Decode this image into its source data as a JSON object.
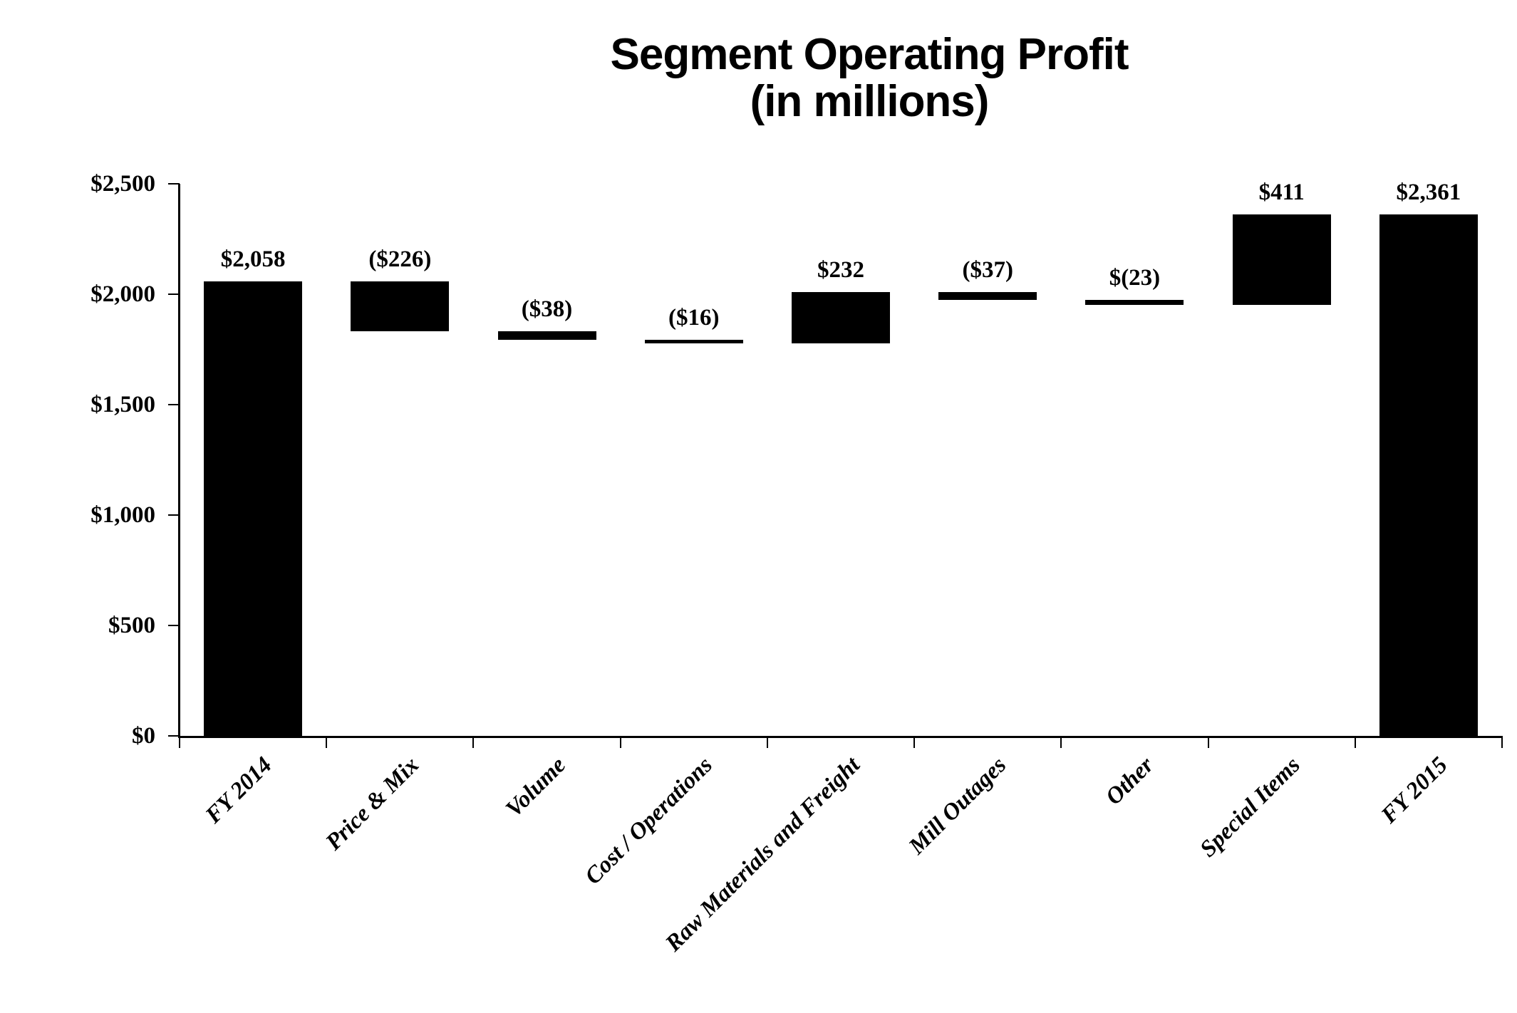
{
  "title": {
    "line1": "Segment Operating Profit",
    "line2": "(in millions)"
  },
  "colors": {
    "bar": "#000000",
    "axis": "#000000",
    "text": "#000000",
    "background": "#ffffff"
  },
  "chart_data": {
    "type": "bar",
    "subtype": "waterfall",
    "title": "Segment Operating Profit (in millions)",
    "categories": [
      "FY 2014",
      "Price & Mix",
      "Volume",
      "Cost / Operations",
      "Raw Materials and Freight",
      "Mill Outages",
      "Other",
      "Special Items",
      "FY 2015"
    ],
    "series": [
      {
        "name": "Segment Operating Profit",
        "values": [
          2058,
          -226,
          -38,
          -16,
          232,
          -37,
          -23,
          411,
          2361
        ]
      }
    ],
    "bars": [
      {
        "category": "FY 2014",
        "label": "$2,058",
        "value": 2058,
        "start": 0,
        "end": 2058
      },
      {
        "category": "Price & Mix",
        "label": "($226)",
        "value": -226,
        "start": 2058,
        "end": 1832
      },
      {
        "category": "Volume",
        "label": "($38)",
        "value": -38,
        "start": 1832,
        "end": 1794
      },
      {
        "category": "Cost / Operations",
        "label": "($16)",
        "value": -16,
        "start": 1794,
        "end": 1778
      },
      {
        "category": "Raw Materials and Freight",
        "label": "$232",
        "value": 232,
        "start": 1778,
        "end": 2010
      },
      {
        "category": "Mill Outages",
        "label": "($37)",
        "value": -37,
        "start": 2010,
        "end": 1973
      },
      {
        "category": "Other",
        "label": "$(23)",
        "value": -23,
        "start": 1973,
        "end": 1950
      },
      {
        "category": "Special Items",
        "label": "$411",
        "value": 411,
        "start": 1950,
        "end": 2361
      },
      {
        "category": "FY 2015",
        "label": "$2,361",
        "value": 2361,
        "start": 0,
        "end": 2361
      }
    ],
    "ylim": [
      0,
      2500
    ],
    "y_tick_step": 500,
    "y_tick_labels": [
      "$2,500",
      "$2,000",
      "$1,500",
      "$1,000",
      "$500",
      "$0"
    ],
    "xlabel": "",
    "ylabel": "",
    "grid": false,
    "legend": false
  }
}
